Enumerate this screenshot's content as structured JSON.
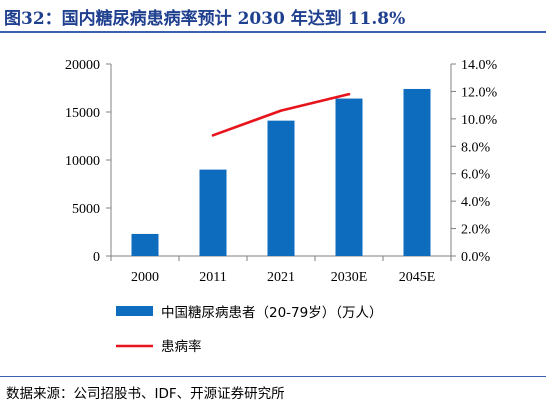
{
  "title": "图32：国内糖尿病患病率预计 2030 年达到 11.8%",
  "source": "数据来源：公司招股书、IDF、开源证券研究所",
  "chart_data": {
    "type": "bar",
    "categories": [
      "2000",
      "2011",
      "2021",
      "2030E",
      "2045E"
    ],
    "series": [
      {
        "name": "中国糖尿病患者（20-79岁）（万人）",
        "type": "bar",
        "axis": "left",
        "values": [
          2300,
          9000,
          14100,
          16400,
          17400
        ],
        "color": "#0e6cbf"
      },
      {
        "name": "患病率",
        "type": "line",
        "axis": "right",
        "values": [
          null,
          0.088,
          0.106,
          0.118,
          null
        ],
        "color": "#e8141c"
      }
    ],
    "y_left": {
      "lim": [
        0,
        20000
      ],
      "ticks": [
        "0",
        "5000",
        "10000",
        "15000",
        "20000"
      ]
    },
    "y_right": {
      "lim": [
        0,
        0.14
      ],
      "ticks": [
        "0.0%",
        "2.0%",
        "4.0%",
        "6.0%",
        "8.0%",
        "10.0%",
        "12.0%",
        "14.0%"
      ]
    },
    "legend_position": "bottom",
    "grid": false
  }
}
